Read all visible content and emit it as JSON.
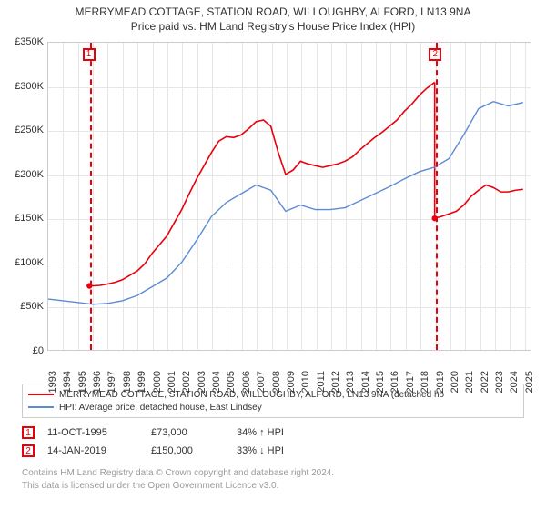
{
  "title": {
    "line1": "MERRYMEAD COTTAGE, STATION ROAD, WILLOUGHBY, ALFORD, LN13 9NA",
    "line2": "Price paid vs. HM Land Registry's House Price Index (HPI)"
  },
  "chart": {
    "type": "line",
    "background_color": "#ffffff",
    "grid_color": "#e6e6e6",
    "border_color": "#cccccc",
    "ylim": [
      0,
      350000
    ],
    "ytick_step": 50000,
    "yticks": [
      {
        "v": 0,
        "label": "£0"
      },
      {
        "v": 50000,
        "label": "£50K"
      },
      {
        "v": 100000,
        "label": "£100K"
      },
      {
        "v": 150000,
        "label": "£150K"
      },
      {
        "v": 200000,
        "label": "£200K"
      },
      {
        "v": 250000,
        "label": "£250K"
      },
      {
        "v": 300000,
        "label": "£300K"
      },
      {
        "v": 350000,
        "label": "£350K"
      }
    ],
    "xlim": [
      1993,
      2025.5
    ],
    "xticks": [
      1993,
      1994,
      1995,
      1996,
      1997,
      1998,
      1999,
      2000,
      2001,
      2002,
      2003,
      2004,
      2005,
      2006,
      2007,
      2008,
      2009,
      2010,
      2011,
      2012,
      2013,
      2014,
      2015,
      2016,
      2017,
      2018,
      2019,
      2020,
      2021,
      2022,
      2023,
      2024,
      2025
    ],
    "series": [
      {
        "name": "price",
        "color": "#e8000b",
        "stroke_width": 1.6,
        "label": "MERRYMEAD COTTAGE, STATION ROAD, WILLOUGHBY, ALFORD, LN13 9NA (detached house)",
        "data": [
          [
            1995.78,
            73000
          ],
          [
            1996.0,
            73000
          ],
          [
            1996.5,
            73500
          ],
          [
            1997.0,
            75000
          ],
          [
            1997.5,
            77000
          ],
          [
            1998.0,
            80000
          ],
          [
            1998.5,
            85000
          ],
          [
            1999.0,
            90000
          ],
          [
            1999.5,
            98000
          ],
          [
            2000.0,
            110000
          ],
          [
            2000.5,
            120000
          ],
          [
            2001.0,
            130000
          ],
          [
            2001.5,
            145000
          ],
          [
            2002.0,
            160000
          ],
          [
            2002.5,
            178000
          ],
          [
            2003.0,
            195000
          ],
          [
            2003.5,
            210000
          ],
          [
            2004.0,
            225000
          ],
          [
            2004.5,
            238000
          ],
          [
            2005.0,
            243000
          ],
          [
            2005.5,
            242000
          ],
          [
            2006.0,
            245000
          ],
          [
            2006.5,
            252000
          ],
          [
            2007.0,
            260000
          ],
          [
            2007.5,
            262000
          ],
          [
            2008.0,
            255000
          ],
          [
            2008.5,
            225000
          ],
          [
            2009.0,
            200000
          ],
          [
            2009.5,
            205000
          ],
          [
            2010.0,
            215000
          ],
          [
            2010.5,
            212000
          ],
          [
            2011.0,
            210000
          ],
          [
            2011.5,
            208000
          ],
          [
            2012.0,
            210000
          ],
          [
            2012.5,
            212000
          ],
          [
            2013.0,
            215000
          ],
          [
            2013.5,
            220000
          ],
          [
            2014.0,
            228000
          ],
          [
            2014.5,
            235000
          ],
          [
            2015.0,
            242000
          ],
          [
            2015.5,
            248000
          ],
          [
            2016.0,
            255000
          ],
          [
            2016.5,
            262000
          ],
          [
            2017.0,
            272000
          ],
          [
            2017.5,
            280000
          ],
          [
            2018.0,
            290000
          ],
          [
            2018.5,
            298000
          ],
          [
            2019.04,
            305000
          ]
        ],
        "continuation": [
          [
            2019.04,
            150000
          ],
          [
            2019.5,
            152000
          ],
          [
            2020.0,
            155000
          ],
          [
            2020.5,
            158000
          ],
          [
            2021.0,
            165000
          ],
          [
            2021.5,
            175000
          ],
          [
            2022.0,
            182000
          ],
          [
            2022.5,
            188000
          ],
          [
            2023.0,
            185000
          ],
          [
            2023.5,
            180000
          ],
          [
            2024.0,
            180000
          ],
          [
            2024.5,
            182000
          ],
          [
            2025.0,
            183000
          ]
        ],
        "marker_points": [
          {
            "x": 1995.78,
            "y": 73000
          },
          {
            "x": 2019.04,
            "y": 150000
          }
        ]
      },
      {
        "name": "hpi",
        "color": "#5a8cd6",
        "stroke_width": 1.4,
        "label": "HPI: Average price, detached house, East Lindsey",
        "data": [
          [
            1993.0,
            58000
          ],
          [
            1994.0,
            56000
          ],
          [
            1995.0,
            54000
          ],
          [
            1996.0,
            52000
          ],
          [
            1997.0,
            53000
          ],
          [
            1998.0,
            56000
          ],
          [
            1999.0,
            62000
          ],
          [
            2000.0,
            72000
          ],
          [
            2001.0,
            82000
          ],
          [
            2002.0,
            100000
          ],
          [
            2003.0,
            125000
          ],
          [
            2004.0,
            152000
          ],
          [
            2005.0,
            168000
          ],
          [
            2006.0,
            178000
          ],
          [
            2007.0,
            188000
          ],
          [
            2008.0,
            182000
          ],
          [
            2009.0,
            158000
          ],
          [
            2010.0,
            165000
          ],
          [
            2011.0,
            160000
          ],
          [
            2012.0,
            160000
          ],
          [
            2013.0,
            162000
          ],
          [
            2014.0,
            170000
          ],
          [
            2015.0,
            178000
          ],
          [
            2016.0,
            186000
          ],
          [
            2017.0,
            195000
          ],
          [
            2018.0,
            203000
          ],
          [
            2019.0,
            208000
          ],
          [
            2020.0,
            218000
          ],
          [
            2021.0,
            245000
          ],
          [
            2022.0,
            275000
          ],
          [
            2023.0,
            283000
          ],
          [
            2024.0,
            278000
          ],
          [
            2025.0,
            282000
          ]
        ]
      }
    ],
    "events": [
      {
        "idx": "1",
        "x": 1995.78,
        "color": "#e8000b"
      },
      {
        "idx": "2",
        "x": 2019.04,
        "color": "#e8000b"
      }
    ]
  },
  "legend": {
    "items": [
      {
        "color": "#e8000b",
        "text": "MERRYMEAD COTTAGE, STATION ROAD, WILLOUGHBY, ALFORD, LN13 9NA (detached ho"
      },
      {
        "color": "#5a8cd6",
        "text": "HPI: Average price, detached house, East Lindsey"
      }
    ]
  },
  "notes": [
    {
      "idx": "1",
      "date": "11-OCT-1995",
      "price": "£73,000",
      "delta": "34% ↑ HPI"
    },
    {
      "idx": "2",
      "date": "14-JAN-2019",
      "price": "£150,000",
      "delta": "33% ↓ HPI"
    }
  ],
  "footer": {
    "line1": "Contains HM Land Registry data © Crown copyright and database right 2024.",
    "line2": "This data is licensed under the Open Government Licence v3.0."
  }
}
